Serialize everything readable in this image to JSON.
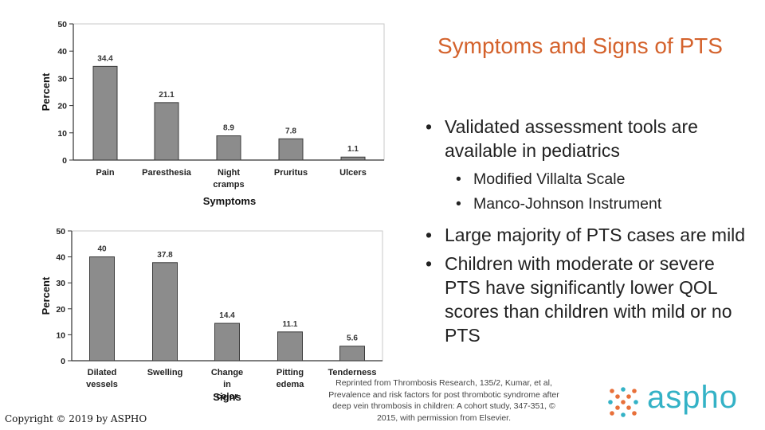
{
  "slide": {
    "title": "Symptoms and Signs of PTS",
    "bullets": [
      {
        "text": "Validated assessment tools are available in pediatrics",
        "sub": [
          "Modified Villalta Scale",
          "Manco-Johnson Instrument"
        ]
      },
      {
        "text": "Large majority of PTS cases are mild",
        "sub": []
      },
      {
        "text": "Children with moderate or severe PTS have significantly lower QOL scores than children with mild or no PTS",
        "sub": []
      }
    ],
    "copyright": "Copyright © 2019 by ASPHO",
    "citation": "Reprinted from Thrombosis Research, 135/2, Kumar, et al, Prevalence and risk factors for post thrombotic syndrome after deep vein thrombosis in children: A cohort study, 347-351, © 2015, with permission from Elsevier.",
    "logo_text": "aspho",
    "colors": {
      "title": "#d4622c",
      "logo": "#34b2c6",
      "logo_dots": "#e8703a",
      "bar": "#8c8c8c"
    }
  },
  "chart_data": [
    {
      "type": "bar",
      "categories": [
        "Pain",
        "Paresthesia",
        "Night cramps",
        "Pruritus",
        "Ulcers"
      ],
      "values": [
        34.4,
        21.1,
        8.9,
        7.8,
        1.1
      ],
      "xlabel": "Symptoms",
      "ylabel": "Percent",
      "ylim": [
        0,
        50
      ],
      "yticks": [
        0,
        10,
        20,
        30,
        40,
        50
      ],
      "grid": false
    },
    {
      "type": "bar",
      "categories": [
        "Dilated vessels",
        "Swelling",
        "Change in color",
        "Pitting edema",
        "Tenderness"
      ],
      "values": [
        40,
        37.8,
        14.4,
        11.1,
        5.6
      ],
      "xlabel": "Signs",
      "ylabel": "Percent",
      "ylim": [
        0,
        50
      ],
      "yticks": [
        0,
        10,
        20,
        30,
        40,
        50
      ],
      "grid": false
    }
  ]
}
